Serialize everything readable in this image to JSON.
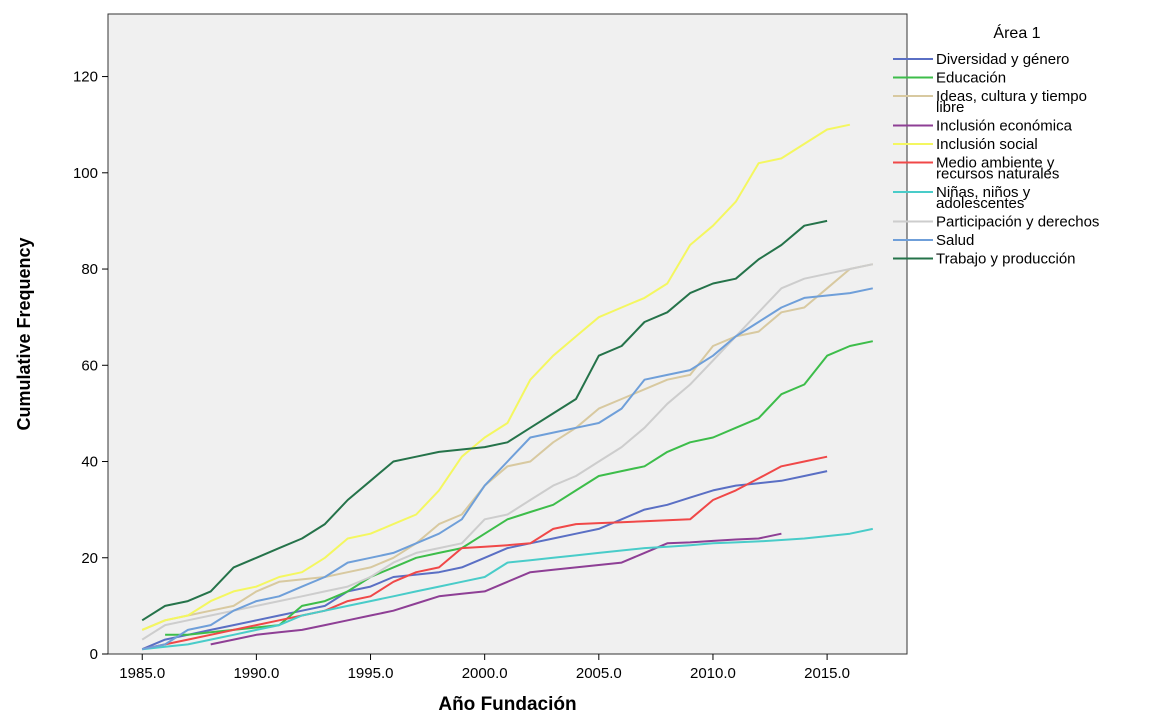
{
  "chart_data": {
    "type": "line",
    "xlabel": "Año Fundación",
    "ylabel": "Cumulative Frequency",
    "xlim": [
      1983.5,
      2018.5
    ],
    "ylim": [
      0,
      133
    ],
    "x_ticks": [
      1985,
      1990,
      1995,
      2000,
      2005,
      2010,
      2015
    ],
    "x_tick_labels": [
      "1985.0",
      "1990.0",
      "1995.0",
      "2000.0",
      "2005.0",
      "2010.0",
      "2015.0"
    ],
    "y_ticks": [
      0,
      20,
      40,
      60,
      80,
      100,
      120
    ],
    "y_tick_labels": [
      "0",
      "20",
      "40",
      "60",
      "80",
      "100",
      "120"
    ],
    "background_color": "#f0f0f0",
    "legend_placement": "right",
    "legend": {
      "title": "Área 1",
      "entries": [
        {
          "lines": [
            "Diversidad y género"
          ],
          "color": "#5a6fc4"
        },
        {
          "lines": [
            "Educación"
          ],
          "color": "#3dbd4a"
        },
        {
          "lines": [
            "Ideas, cultura y tiempo",
            "libre"
          ],
          "color": "#d8c9a0"
        },
        {
          "lines": [
            "Inclusión económica"
          ],
          "color": "#8e3f95"
        },
        {
          "lines": [
            "Inclusión social"
          ],
          "color": "#f4f760"
        },
        {
          "lines": [
            "Medio ambiente y",
            "recursos naturales"
          ],
          "color": "#f04848"
        },
        {
          "lines": [
            "Niñas, niños y",
            "adolescentes"
          ],
          "color": "#49ccc9"
        },
        {
          "lines": [
            "Participación y derechos"
          ],
          "color": "#cdcdcd"
        },
        {
          "lines": [
            "Salud"
          ],
          "color": "#6f9fd9"
        },
        {
          "lines": [
            "Trabajo y producción"
          ],
          "color": "#25734a"
        }
      ]
    },
    "series": [
      {
        "name": "Diversidad y género",
        "color": "#5a6fc4",
        "x": [
          1985,
          1986,
          1987,
          1988,
          1989,
          1990,
          1991,
          1992,
          1993,
          1994,
          1995,
          1996,
          1997,
          1998,
          1999,
          2000,
          2001,
          2002,
          2003,
          2004,
          2005,
          2006,
          2007,
          2008,
          2009,
          2010,
          2011,
          2012,
          2013,
          2014,
          2015
        ],
        "y": [
          1,
          3,
          4,
          5,
          6,
          7,
          8,
          9,
          10,
          13,
          14,
          16,
          16.5,
          17,
          18,
          20,
          22,
          23,
          24,
          25,
          26,
          28,
          30,
          31,
          32.5,
          34,
          35,
          35.5,
          36,
          37,
          38
        ]
      },
      {
        "name": "Educación",
        "color": "#3dbd4a",
        "x": [
          1986,
          1987,
          1988,
          1989,
          1990,
          1991,
          1992,
          1993,
          1994,
          1995,
          1996,
          1997,
          1998,
          1999,
          2000,
          2001,
          2002,
          2003,
          2004,
          2005,
          2006,
          2007,
          2008,
          2009,
          2010,
          2011,
          2012,
          2013,
          2014,
          2015,
          2016,
          2017
        ],
        "y": [
          4,
          4,
          4.5,
          5,
          5.5,
          6,
          10,
          11,
          13,
          16,
          18,
          20,
          21,
          22,
          25,
          28,
          29.5,
          31,
          34,
          37,
          38,
          39,
          42,
          44,
          45,
          47,
          49,
          54,
          56,
          62,
          64,
          65
        ]
      },
      {
        "name": "Ideas, cultura y tiempo libre",
        "color": "#d8c9a0",
        "x": [
          1985,
          1986,
          1987,
          1988,
          1989,
          1990,
          1991,
          1992,
          1993,
          1994,
          1995,
          1996,
          1997,
          1998,
          1999,
          2000,
          2001,
          2002,
          2003,
          2004,
          2005,
          2006,
          2007,
          2008,
          2009,
          2010,
          2011,
          2012,
          2013,
          2014,
          2015,
          2016,
          2017
        ],
        "y": [
          5,
          7,
          8,
          9,
          10,
          13,
          15,
          15.5,
          16,
          17,
          18,
          20,
          23,
          27,
          29,
          35,
          39,
          40,
          44,
          47,
          51,
          53,
          55,
          57,
          58,
          64,
          66,
          67,
          71,
          72,
          76,
          80,
          81
        ]
      },
      {
        "name": "Inclusión económica",
        "color": "#8e3f95",
        "x": [
          1988,
          1989,
          1990,
          1991,
          1992,
          1993,
          1994,
          1995,
          1996,
          1997,
          1998,
          1999,
          2000,
          2001,
          2002,
          2003,
          2004,
          2005,
          2006,
          2007,
          2008,
          2009,
          2010,
          2011,
          2012,
          2013
        ],
        "y": [
          2,
          3,
          4,
          4.5,
          5,
          6,
          7,
          8,
          9,
          10.5,
          12,
          12.5,
          13,
          15,
          17,
          17.5,
          18,
          18.5,
          19,
          21,
          23,
          23.2,
          23.5,
          23.8,
          24,
          25
        ]
      },
      {
        "name": "Inclusión social",
        "color": "#f4f760",
        "x": [
          1985,
          1986,
          1987,
          1988,
          1989,
          1990,
          1991,
          1992,
          1993,
          1994,
          1995,
          1996,
          1997,
          1998,
          1999,
          2000,
          2001,
          2002,
          2003,
          2004,
          2005,
          2006,
          2007,
          2008,
          2009,
          2010,
          2011,
          2012,
          2013,
          2014,
          2015,
          2016
        ],
        "y": [
          5,
          7,
          8,
          11,
          13,
          14,
          16,
          17,
          20,
          24,
          25,
          27,
          29,
          34,
          41,
          45,
          48,
          57,
          62,
          66,
          70,
          72,
          74,
          77,
          85,
          89,
          94,
          102,
          103,
          106,
          109,
          110
        ]
      },
      {
        "name": "Medio ambiente y recursos naturales",
        "color": "#f04848",
        "x": [
          1985,
          1986,
          1987,
          1988,
          1989,
          1990,
          1991,
          1992,
          1993,
          1994,
          1995,
          1996,
          1997,
          1998,
          1999,
          2000,
          2001,
          2002,
          2003,
          2004,
          2005,
          2006,
          2007,
          2008,
          2009,
          2010,
          2011,
          2012,
          2013,
          2014,
          2015
        ],
        "y": [
          1,
          2,
          3,
          4,
          5,
          6,
          7,
          8,
          9,
          11,
          12,
          15,
          17,
          18,
          22,
          22.3,
          22.6,
          23,
          26,
          27,
          27.2,
          27.4,
          27.6,
          27.8,
          28,
          32,
          34,
          36.5,
          39,
          40,
          41
        ]
      },
      {
        "name": "Niñas, niños y adolescentes",
        "color": "#49ccc9",
        "x": [
          1985,
          1986,
          1987,
          1988,
          1989,
          1990,
          1991,
          1992,
          1993,
          1994,
          1995,
          1996,
          1997,
          1998,
          1999,
          2000,
          2001,
          2002,
          2003,
          2004,
          2005,
          2006,
          2007,
          2008,
          2009,
          2010,
          2011,
          2012,
          2013,
          2014,
          2015,
          2016,
          2017
        ],
        "y": [
          1,
          1.5,
          2,
          3,
          4,
          5,
          6,
          8,
          9,
          10,
          11,
          12,
          13,
          14,
          15,
          16,
          19,
          19.5,
          20,
          20.5,
          21,
          21.5,
          22,
          22.3,
          22.6,
          23,
          23.2,
          23.4,
          23.7,
          24,
          24.5,
          25,
          26
        ]
      },
      {
        "name": "Participación y derechos",
        "color": "#cdcdcd",
        "x": [
          1985,
          1986,
          1987,
          1988,
          1989,
          1990,
          1991,
          1992,
          1993,
          1994,
          1995,
          1996,
          1997,
          1998,
          1999,
          2000,
          2001,
          2002,
          2003,
          2004,
          2005,
          2006,
          2007,
          2008,
          2009,
          2010,
          2011,
          2012,
          2013,
          2014,
          2015,
          2016,
          2017
        ],
        "y": [
          3,
          6,
          7,
          8,
          9,
          10,
          11,
          12,
          13,
          14,
          16,
          19,
          21,
          22,
          23,
          28,
          29,
          32,
          35,
          37,
          40,
          43,
          47,
          52,
          56,
          61,
          66,
          71,
          76,
          78,
          79,
          80,
          81
        ]
      },
      {
        "name": "Salud",
        "color": "#6f9fd9",
        "x": [
          1985,
          1986,
          1987,
          1988,
          1989,
          1990,
          1991,
          1992,
          1993,
          1994,
          1995,
          1996,
          1997,
          1998,
          1999,
          2000,
          2001,
          2002,
          2003,
          2004,
          2005,
          2006,
          2007,
          2008,
          2009,
          2010,
          2011,
          2012,
          2013,
          2014,
          2015,
          2016,
          2017
        ],
        "y": [
          1,
          2,
          5,
          6,
          9,
          11,
          12,
          14,
          16,
          19,
          20,
          21,
          23,
          25,
          28,
          35,
          40,
          45,
          46,
          47,
          48,
          51,
          57,
          58,
          59,
          62,
          66,
          69,
          72,
          74,
          74.5,
          75,
          76
        ]
      },
      {
        "name": "Trabajo y producción",
        "color": "#25734a",
        "x": [
          1985,
          1986,
          1987,
          1988,
          1989,
          1990,
          1991,
          1992,
          1993,
          1994,
          1995,
          1996,
          1997,
          1998,
          1999,
          2000,
          2001,
          2002,
          2003,
          2004,
          2005,
          2006,
          2007,
          2008,
          2009,
          2010,
          2011,
          2012,
          2013,
          2014,
          2015
        ],
        "y": [
          7,
          10,
          11,
          13,
          18,
          20,
          22,
          24,
          27,
          32,
          36,
          40,
          41,
          42,
          42.5,
          43,
          44,
          47,
          50,
          53,
          62,
          64,
          69,
          71,
          75,
          77,
          78,
          82,
          85,
          89,
          90
        ]
      }
    ]
  }
}
